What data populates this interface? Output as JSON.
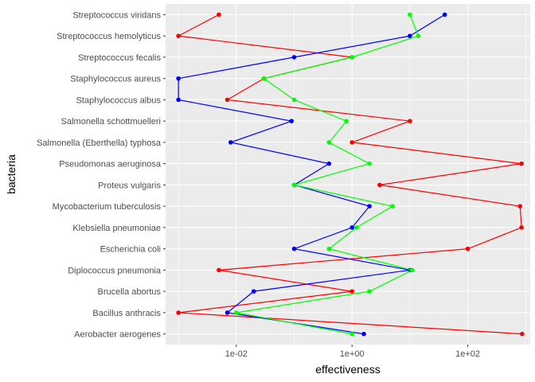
{
  "chart_data": {
    "type": "line",
    "title": "",
    "xlabel": "effectiveness",
    "ylabel": "bacteria",
    "x_scale": "log10",
    "xlim": [
      0.0006,
      1200
    ],
    "x_ticks": [
      0.01,
      1,
      100
    ],
    "x_tick_labels": [
      "1e-02",
      "1e+00",
      "1e+02"
    ],
    "grid": true,
    "legend": "none",
    "categories": [
      "Aerobacter aerogenes",
      "Bacillus anthracis",
      "Brucella abortus",
      "Diplococcus pneumonia",
      "Escherichia coli",
      "Klebsiella pneumoniae",
      "Mycobacterium tuberculosis",
      "Proteus vulgaris",
      "Pseudomonas aeruginosa",
      "Salmonella (Eberthella) typhosa",
      "Salmonella schottmuelleri",
      "Staphylococcus albus",
      "Staphylococcus aureus",
      "Streptococcus fecalis",
      "Streptococcus hemolyticus",
      "Streptococcus viridans"
    ],
    "series": [
      {
        "color": "#ff0000",
        "values": [
          870,
          0.001,
          1,
          0.005,
          100,
          850,
          800,
          3,
          850,
          1,
          10,
          0.007,
          0.03,
          1,
          0.001,
          0.005
        ]
      },
      {
        "color": "#0000ff",
        "values": [
          1.6,
          0.007,
          0.02,
          10,
          0.1,
          1,
          2,
          0.1,
          0.4,
          0.008,
          0.09,
          0.001,
          0.001,
          0.1,
          10,
          40
        ]
      },
      {
        "color": "#00ff00",
        "values": [
          1,
          0.01,
          2,
          11,
          0.4,
          1.2,
          5,
          0.1,
          2,
          0.4,
          0.8,
          0.1,
          0.03,
          1,
          14,
          10
        ]
      }
    ]
  }
}
